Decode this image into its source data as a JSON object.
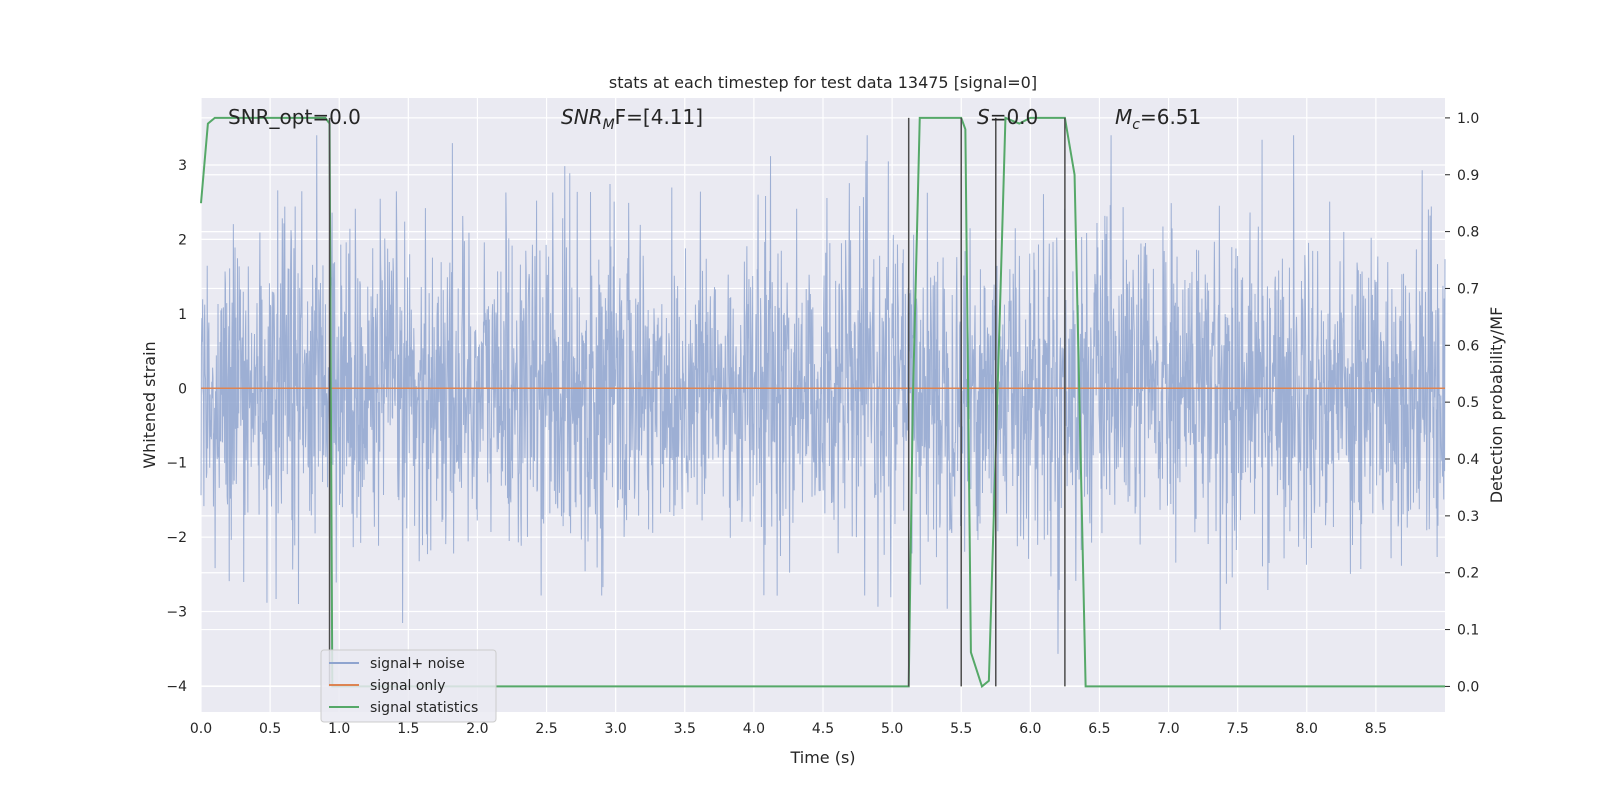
{
  "chart_data": {
    "type": "line",
    "title": "stats at each timestep for test data 13475 [signal=0]",
    "xlabel": "Time (s)",
    "ylabel": "Whitened strain",
    "ylabel_right": "Detection probability/MF",
    "xlim": [
      0.0,
      9.0
    ],
    "ylim": [
      -4.35,
      3.9
    ],
    "ylim_right": [
      -0.045,
      1.035
    ],
    "x_ticks": [
      "0.0",
      "0.5",
      "1.0",
      "1.5",
      "2.0",
      "2.5",
      "3.0",
      "3.5",
      "4.0",
      "4.5",
      "5.0",
      "5.5",
      "6.0",
      "6.5",
      "7.0",
      "7.5",
      "8.0",
      "8.5"
    ],
    "y_ticks": [
      "3",
      "2",
      "1",
      "0",
      "−1",
      "−2",
      "−3",
      "−4"
    ],
    "y_ticks_right": [
      "1.0",
      "0.9",
      "0.8",
      "0.7",
      "0.6",
      "0.5",
      "0.4",
      "0.3",
      "0.2",
      "0.1",
      "0.0"
    ],
    "annotations": {
      "snr_opt": "SNR_opt=0.0",
      "snr_mf_base": "SNR",
      "snr_mf_sub": "M",
      "snr_mf_rest": "F=[4.11]",
      "s_label": "S",
      "s_rest": "=0.0",
      "mc_base": "M",
      "mc_sub": "c",
      "mc_rest": "=6.51"
    },
    "legend_position": "lower-left",
    "grid": true,
    "series": [
      {
        "name": "signal+ noise",
        "color": "#8fa4cf",
        "description_values": "dense noise spanning roughly -3.8 to 3.4 about zero",
        "amplitude_range": [
          -3.8,
          3.4
        ]
      },
      {
        "name": "signal only",
        "color": "#dd8452",
        "x": [
          0.0,
          9.0
        ],
        "y": [
          0.0,
          0.0
        ]
      },
      {
        "name": "signal statistics",
        "color": "#55a868",
        "axis": "right",
        "x": [
          0.0,
          0.05,
          0.1,
          0.9,
          0.93,
          0.95,
          5.12,
          5.15,
          5.2,
          5.5,
          5.53,
          5.57,
          5.65,
          5.7,
          5.78,
          5.82,
          5.92,
          6.0,
          6.25,
          6.32,
          6.4,
          9.0
        ],
        "y": [
          0.85,
          0.99,
          1.0,
          1.0,
          0.99,
          0.0,
          0.0,
          0.5,
          1.0,
          1.0,
          0.98,
          0.06,
          0.0,
          0.01,
          0.66,
          1.0,
          0.99,
          1.0,
          1.0,
          0.9,
          0.0,
          0.0
        ]
      }
    ],
    "vlines_right_axis": [
      {
        "x": 0.93,
        "y": [
          0.0,
          1.0
        ]
      },
      {
        "x": 5.12,
        "y": [
          0.0,
          1.0
        ]
      },
      {
        "x": 5.5,
        "y": [
          0.0,
          1.0
        ]
      },
      {
        "x": 5.75,
        "y": [
          0.0,
          1.0
        ]
      },
      {
        "x": 6.25,
        "y": [
          0.0,
          1.0
        ]
      }
    ],
    "colors": {
      "background": "#eaeaf2",
      "grid": "#ffffff",
      "noise": "#8fa4cf",
      "signal": "#dd8452",
      "statistic": "#55a868",
      "vline": "#4c4c4c"
    }
  },
  "legend": {
    "items": [
      {
        "label": "signal+ noise",
        "color": "#8fa4cf"
      },
      {
        "label": "signal only",
        "color": "#dd8452"
      },
      {
        "label": "signal statistics",
        "color": "#55a868"
      }
    ]
  }
}
